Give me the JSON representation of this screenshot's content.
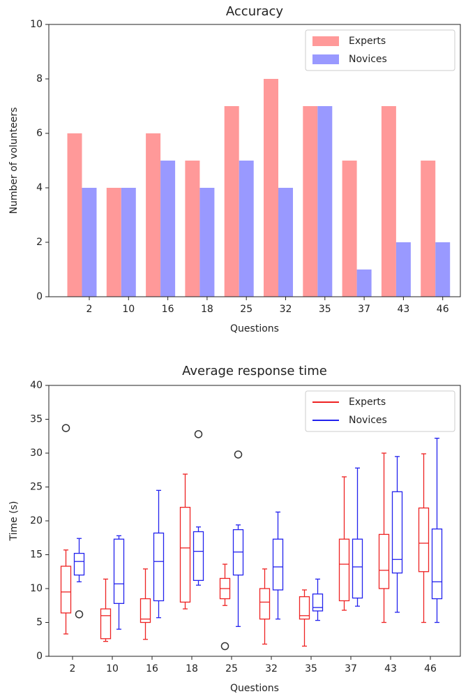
{
  "chart_data": [
    {
      "type": "bar",
      "title": "Accuracy",
      "x_label": "Questions",
      "y_label": "Number of volunteers",
      "categories": [
        "2",
        "10",
        "16",
        "18",
        "25",
        "32",
        "35",
        "37",
        "43",
        "46"
      ],
      "series": [
        {
          "name": "Experts",
          "color": "#ff9999",
          "values": [
            6,
            4,
            6,
            5,
            7,
            8,
            7,
            5,
            7,
            5
          ]
        },
        {
          "name": "Novices",
          "color": "#9999ff",
          "values": [
            4,
            4,
            5,
            4,
            5,
            4,
            7,
            1,
            2,
            2
          ]
        }
      ],
      "ylim": [
        0,
        10
      ],
      "yticks": [
        0,
        2,
        4,
        6,
        8,
        10
      ],
      "legend": "upper right"
    },
    {
      "type": "box",
      "title": "Average response time",
      "x_label": "Questions",
      "y_label": "Time (s)",
      "categories": [
        "2",
        "10",
        "16",
        "18",
        "25",
        "32",
        "35",
        "37",
        "43",
        "46"
      ],
      "series": [
        {
          "name": "Experts",
          "color": "#ee2222",
          "boxes": [
            {
              "min": 3.3,
              "q1": 6.4,
              "median": 9.5,
              "q3": 13.3,
              "max": 15.7,
              "fliers": [
                33.7
              ]
            },
            {
              "min": 2.2,
              "q1": 2.6,
              "median": 6,
              "q3": 7,
              "max": 11.4,
              "fliers": []
            },
            {
              "min": 2.5,
              "q1": 5,
              "median": 5.5,
              "q3": 8.5,
              "max": 12.9,
              "fliers": []
            },
            {
              "min": 7,
              "q1": 8,
              "median": 16,
              "q3": 22,
              "max": 26.9,
              "fliers": []
            },
            {
              "min": 7.5,
              "q1": 8.5,
              "median": 10,
              "q3": 11.5,
              "max": 13.6,
              "fliers": [
                1.5
              ]
            },
            {
              "min": 1.8,
              "q1": 5.5,
              "median": 8,
              "q3": 10,
              "max": 12.9,
              "fliers": []
            },
            {
              "min": 1.5,
              "q1": 5.5,
              "median": 6,
              "q3": 8.8,
              "max": 9.8,
              "fliers": []
            },
            {
              "min": 6.8,
              "q1": 8.2,
              "median": 13.6,
              "q3": 17.3,
              "max": 26.5,
              "fliers": []
            },
            {
              "min": 5,
              "q1": 10,
              "median": 12.7,
              "q3": 18,
              "max": 30,
              "fliers": []
            },
            {
              "min": 5,
              "q1": 12.5,
              "median": 16.7,
              "q3": 21.9,
              "max": 29.9,
              "fliers": []
            }
          ]
        },
        {
          "name": "Novices",
          "color": "#2222ee",
          "boxes": [
            {
              "min": 11,
              "q1": 12,
              "median": 14,
              "q3": 15.2,
              "max": 17.4,
              "fliers": [
                6.2
              ]
            },
            {
              "min": 4,
              "q1": 7.8,
              "median": 10.7,
              "q3": 17.3,
              "max": 17.8,
              "fliers": []
            },
            {
              "min": 5.7,
              "q1": 8.2,
              "median": 14,
              "q3": 18.2,
              "max": 24.5,
              "fliers": []
            },
            {
              "min": 10.5,
              "q1": 11.2,
              "median": 15.5,
              "q3": 18.4,
              "max": 19.1,
              "fliers": [
                32.8
              ]
            },
            {
              "min": 4.4,
              "q1": 12,
              "median": 15.4,
              "q3": 18.7,
              "max": 19.4,
              "fliers": [
                29.8
              ]
            },
            {
              "min": 5.5,
              "q1": 9.8,
              "median": 13.2,
              "q3": 17.3,
              "max": 21.3,
              "fliers": []
            },
            {
              "min": 5.3,
              "q1": 6.7,
              "median": 7.2,
              "q3": 9.2,
              "max": 11.4,
              "fliers": []
            },
            {
              "min": 7.4,
              "q1": 8.6,
              "median": 13.2,
              "q3": 17.3,
              "max": 27.8,
              "fliers": []
            },
            {
              "min": 6.5,
              "q1": 12.3,
              "median": 14.3,
              "q3": 24.3,
              "max": 29.5,
              "fliers": []
            },
            {
              "min": 5,
              "q1": 8.5,
              "median": 11,
              "q3": 18.8,
              "max": 32.2,
              "fliers": []
            }
          ]
        }
      ],
      "ylim": [
        0,
        40
      ],
      "yticks": [
        0,
        5,
        10,
        15,
        20,
        25,
        30,
        35,
        40
      ],
      "legend": "upper right"
    }
  ]
}
